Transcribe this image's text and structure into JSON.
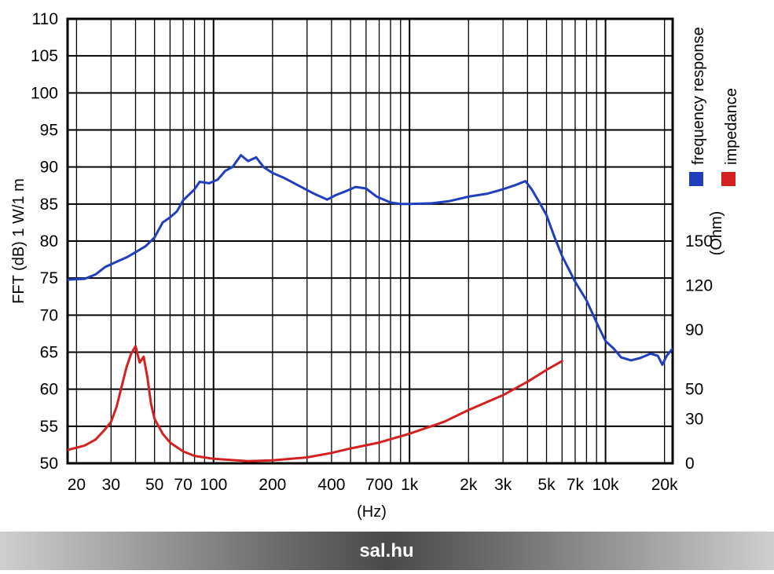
{
  "footer": {
    "brand": "sal.hu"
  },
  "chart_data": {
    "type": "line",
    "xscale": "log",
    "xlim": [
      18,
      22000
    ],
    "xlabel": "(Hz)",
    "ylabel": "FFT (dB) 1 W/1 m",
    "ylim": [
      50,
      110
    ],
    "y_ticks": [
      50,
      55,
      60,
      65,
      70,
      75,
      80,
      85,
      90,
      95,
      100,
      105,
      110
    ],
    "y2label": "(Ohm)",
    "y2lim": [
      0,
      300
    ],
    "y2_ticks": [
      0,
      30,
      50,
      90,
      120,
      150
    ],
    "y2_tick_labels": [
      "0",
      "30",
      "50",
      "90",
      "120",
      "150"
    ],
    "x_ticks": [
      20,
      30,
      50,
      70,
      100,
      200,
      400,
      700,
      1000,
      2000,
      3000,
      5000,
      7000,
      10000,
      20000
    ],
    "x_tick_labels": [
      "20",
      "30",
      "50",
      "70",
      "100",
      "200",
      "400",
      "700",
      "1k",
      "2k",
      "3k",
      "5k",
      "7k",
      "10k",
      "20k"
    ],
    "grid": true,
    "legend_position": "right",
    "series": [
      {
        "name": "frequency response",
        "axis": "left",
        "color": "#1f3fbf",
        "points": [
          [
            18,
            74.8
          ],
          [
            22,
            74.9
          ],
          [
            25,
            75.5
          ],
          [
            28,
            76.5
          ],
          [
            32,
            77.2
          ],
          [
            36,
            77.8
          ],
          [
            40,
            78.5
          ],
          [
            45,
            79.3
          ],
          [
            50,
            80.5
          ],
          [
            55,
            82.5
          ],
          [
            60,
            83.2
          ],
          [
            65,
            84.0
          ],
          [
            70,
            85.5
          ],
          [
            80,
            87.0
          ],
          [
            85,
            88.0
          ],
          [
            95,
            87.8
          ],
          [
            105,
            88.3
          ],
          [
            115,
            89.5
          ],
          [
            125,
            90.0
          ],
          [
            138,
            91.6
          ],
          [
            150,
            90.8
          ],
          [
            165,
            91.3
          ],
          [
            180,
            90.0
          ],
          [
            200,
            89.2
          ],
          [
            230,
            88.5
          ],
          [
            280,
            87.3
          ],
          [
            320,
            86.5
          ],
          [
            380,
            85.6
          ],
          [
            420,
            86.2
          ],
          [
            470,
            86.7
          ],
          [
            530,
            87.3
          ],
          [
            600,
            87.1
          ],
          [
            680,
            86.0
          ],
          [
            800,
            85.2
          ],
          [
            900,
            85.0
          ],
          [
            1000,
            85.0
          ],
          [
            1300,
            85.1
          ],
          [
            1600,
            85.4
          ],
          [
            2000,
            86.0
          ],
          [
            2500,
            86.4
          ],
          [
            3000,
            87.0
          ],
          [
            3500,
            87.6
          ],
          [
            3900,
            88.1
          ],
          [
            4200,
            87.0
          ],
          [
            4600,
            85.2
          ],
          [
            5000,
            83.5
          ],
          [
            5500,
            80.5
          ],
          [
            6000,
            78.0
          ],
          [
            7000,
            74.5
          ],
          [
            8000,
            72.0
          ],
          [
            9000,
            69.0
          ],
          [
            10000,
            66.5
          ],
          [
            11000,
            65.5
          ],
          [
            12000,
            64.3
          ],
          [
            13500,
            63.9
          ],
          [
            15000,
            64.2
          ],
          [
            17000,
            64.8
          ],
          [
            18500,
            64.5
          ],
          [
            19500,
            63.3
          ],
          [
            20500,
            64.5
          ],
          [
            22000,
            65.5
          ]
        ]
      },
      {
        "name": "impedance",
        "axis": "right",
        "color": "#d42020",
        "points": [
          [
            18,
            9
          ],
          [
            22,
            12
          ],
          [
            25,
            16
          ],
          [
            28,
            23
          ],
          [
            30,
            28
          ],
          [
            32,
            38
          ],
          [
            34,
            52
          ],
          [
            36,
            65
          ],
          [
            38,
            74
          ],
          [
            40,
            79
          ],
          [
            42,
            68
          ],
          [
            44,
            72
          ],
          [
            46,
            58
          ],
          [
            48,
            40
          ],
          [
            50,
            30
          ],
          [
            55,
            20
          ],
          [
            60,
            14
          ],
          [
            70,
            8
          ],
          [
            80,
            5
          ],
          [
            100,
            3
          ],
          [
            150,
            1.5
          ],
          [
            200,
            2
          ],
          [
            300,
            4
          ],
          [
            400,
            7
          ],
          [
            500,
            10
          ],
          [
            700,
            14
          ],
          [
            1000,
            20
          ],
          [
            1500,
            28
          ],
          [
            2000,
            36
          ],
          [
            3000,
            46
          ],
          [
            4000,
            55
          ],
          [
            5000,
            63
          ],
          [
            6000,
            69
          ]
        ]
      }
    ]
  }
}
